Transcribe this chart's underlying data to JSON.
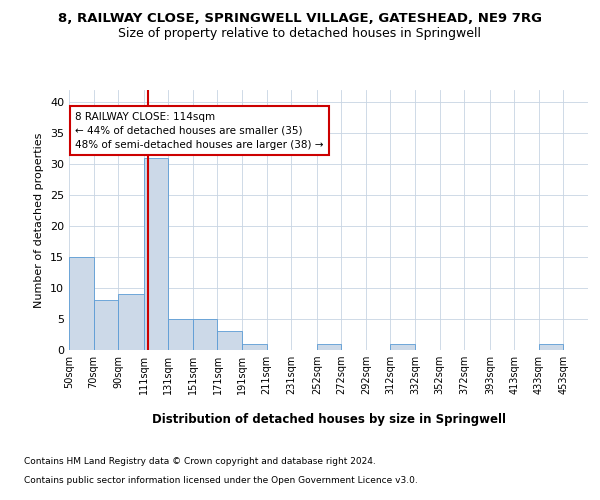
{
  "title_line1": "8, RAILWAY CLOSE, SPRINGWELL VILLAGE, GATESHEAD, NE9 7RG",
  "title_line2": "Size of property relative to detached houses in Springwell",
  "xlabel": "Distribution of detached houses by size in Springwell",
  "ylabel": "Number of detached properties",
  "bin_labels": [
    "50sqm",
    "70sqm",
    "90sqm",
    "111sqm",
    "131sqm",
    "151sqm",
    "171sqm",
    "191sqm",
    "211sqm",
    "231sqm",
    "252sqm",
    "272sqm",
    "292sqm",
    "312sqm",
    "332sqm",
    "352sqm",
    "372sqm",
    "393sqm",
    "413sqm",
    "433sqm",
    "453sqm"
  ],
  "bin_edges": [
    50,
    70,
    90,
    111,
    131,
    151,
    171,
    191,
    211,
    231,
    252,
    272,
    292,
    312,
    332,
    352,
    372,
    393,
    413,
    433,
    453
  ],
  "values": [
    15,
    8,
    9,
    31,
    5,
    5,
    3,
    1,
    0,
    0,
    1,
    0,
    0,
    1,
    0,
    0,
    0,
    0,
    0,
    1,
    0
  ],
  "bar_color": "#ccd9e8",
  "bar_edge_color": "#5b9bd5",
  "vline_x": 114,
  "vline_color": "#cc0000",
  "annotation_line1": "8 RAILWAY CLOSE: 114sqm",
  "annotation_line2": "← 44% of detached houses are smaller (35)",
  "annotation_line3": "48% of semi-detached houses are larger (38) →",
  "annotation_box_color": "#ffffff",
  "annotation_box_edge": "#cc0000",
  "ylim": [
    0,
    42
  ],
  "yticks": [
    0,
    5,
    10,
    15,
    20,
    25,
    30,
    35,
    40
  ],
  "footer_line1": "Contains HM Land Registry data © Crown copyright and database right 2024.",
  "footer_line2": "Contains public sector information licensed under the Open Government Licence v3.0.",
  "background_color": "#ffffff",
  "grid_color": "#c8d4e3"
}
